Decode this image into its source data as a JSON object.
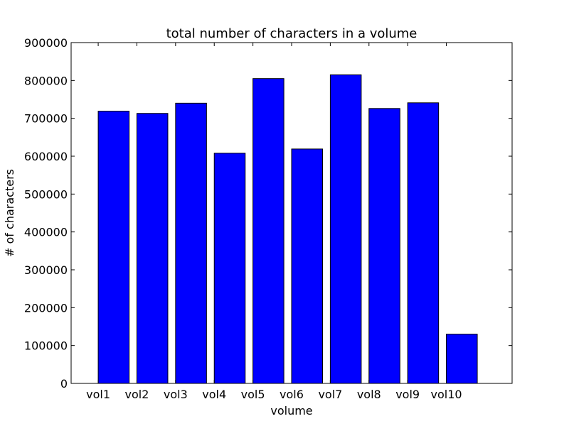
{
  "chart_data": {
    "type": "bar",
    "title": "total number of characters in a volume",
    "xlabel": "volume",
    "ylabel": "# of characters",
    "categories": [
      "vol1",
      "vol2",
      "vol3",
      "vol4",
      "vol5",
      "vol6",
      "vol7",
      "vol8",
      "vol9",
      "vol10"
    ],
    "values": [
      719000,
      713000,
      740000,
      608000,
      805000,
      619000,
      815000,
      726000,
      741000,
      130000
    ],
    "ylim": [
      0,
      900000
    ],
    "yticks": [
      0,
      100000,
      200000,
      300000,
      400000,
      500000,
      600000,
      700000,
      800000,
      900000
    ],
    "grid": false,
    "bar_color": "#0000ff",
    "edge_color": "#000000"
  }
}
